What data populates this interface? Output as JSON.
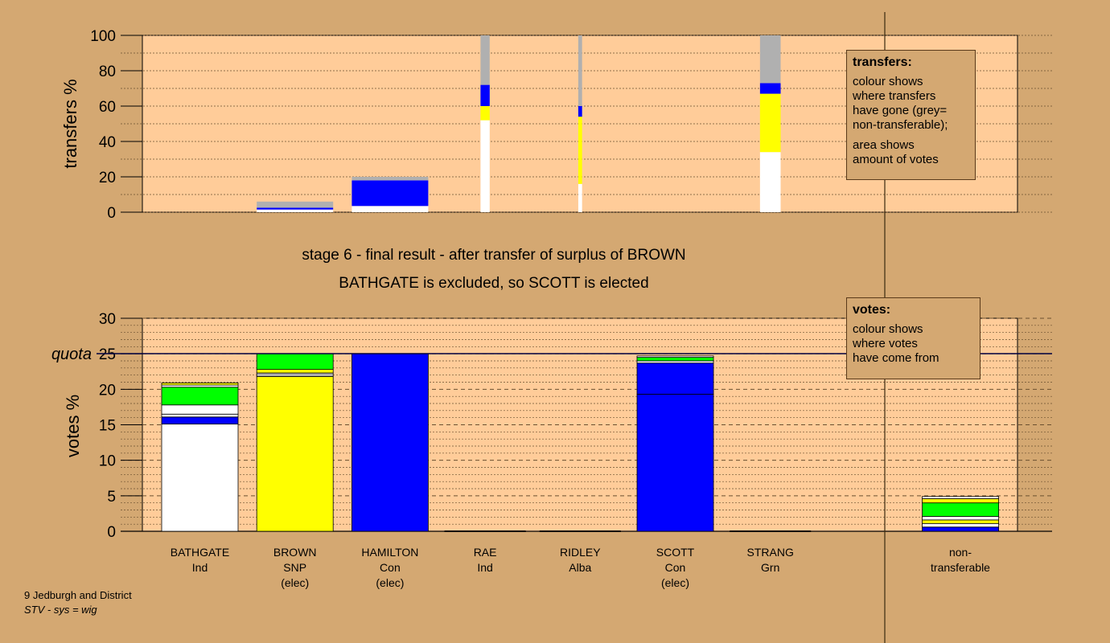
{
  "colors": {
    "background": "#d4a872",
    "plot_bg": "#ffcc99",
    "Ind": "#ffffff",
    "SNP": "#ffff00",
    "Con": "#0000ff",
    "Alba": "#ffffff",
    "Grn": "#00ff00",
    "nontransferable": "#b0b0b0"
  },
  "title": {
    "line1": "stage 6 - final result - after transfer of surplus of BROWN",
    "line2": "BATHGATE is excluded, so SCOTT is elected"
  },
  "footer": {
    "line1": "9 Jedburgh and District",
    "line2": "STV - sys = wig"
  },
  "legend_transfers": {
    "heading": "transfers:",
    "lines": [
      "colour shows",
      "where transfers",
      "have gone (grey=",
      "non-transferable);"
    ],
    "lines2": [
      "area shows",
      "amount of votes"
    ]
  },
  "legend_votes": {
    "heading": "votes:",
    "lines": [
      "colour shows",
      "where votes",
      "have come from"
    ]
  },
  "candidates": [
    {
      "name": "BATHGATE",
      "party": "Ind",
      "status": ""
    },
    {
      "name": "BROWN",
      "party": "SNP",
      "status": "(elec)"
    },
    {
      "name": "HAMILTON",
      "party": "Con",
      "status": "(elec)"
    },
    {
      "name": "RAE",
      "party": "Ind",
      "status": ""
    },
    {
      "name": "RIDLEY",
      "party": "Alba",
      "status": ""
    },
    {
      "name": "SCOTT",
      "party": "Con",
      "status": "(elec)"
    },
    {
      "name": "STRANG",
      "party": "Grn",
      "status": ""
    }
  ],
  "nontransferable": {
    "line1": "non-",
    "line2": "transferable"
  },
  "chart_data": [
    {
      "type": "bar",
      "ylabel": "transfers %",
      "ylim": [
        0,
        100
      ],
      "yticks": [
        0,
        20,
        40,
        60,
        80,
        100
      ],
      "bars": [
        {
          "index": 1,
          "width_share": 1.0,
          "segments": [
            {
              "party": "Ind",
              "from": 0,
              "to": 1.5
            },
            {
              "party": "Con",
              "from": 1.5,
              "to": 2.5
            },
            {
              "party": "nontransferable",
              "from": 2.5,
              "to": 6
            }
          ]
        },
        {
          "index": 2,
          "width_share": 1.0,
          "segments": [
            {
              "party": "Ind",
              "from": 0,
              "to": 3.5
            },
            {
              "party": "Con",
              "from": 3.5,
              "to": 18
            },
            {
              "party": "nontransferable",
              "from": 18,
              "to": 20
            }
          ]
        },
        {
          "index": 3,
          "width_share": 0.12,
          "segments": [
            {
              "party": "Ind",
              "from": 0,
              "to": 52
            },
            {
              "party": "SNP",
              "from": 52,
              "to": 60
            },
            {
              "party": "Con",
              "from": 60,
              "to": 72
            },
            {
              "party": "nontransferable",
              "from": 72,
              "to": 100
            }
          ]
        },
        {
          "index": 4,
          "width_share": 0.05,
          "segments": [
            {
              "party": "Ind",
              "from": 0,
              "to": 16
            },
            {
              "party": "SNP",
              "from": 16,
              "to": 54
            },
            {
              "party": "Con",
              "from": 54,
              "to": 60
            },
            {
              "party": "nontransferable",
              "from": 60,
              "to": 100
            }
          ]
        },
        {
          "index": 6,
          "width_share": 0.27,
          "segments": [
            {
              "party": "Ind",
              "from": 0,
              "to": 34
            },
            {
              "party": "SNP",
              "from": 34,
              "to": 67
            },
            {
              "party": "Con",
              "from": 67,
              "to": 73
            },
            {
              "party": "nontransferable",
              "from": 73,
              "to": 100
            }
          ]
        }
      ]
    },
    {
      "type": "bar",
      "ylabel": "votes %",
      "ylim": [
        0,
        30
      ],
      "yticks": [
        0,
        5,
        10,
        15,
        20,
        25,
        30
      ],
      "quota": 25,
      "quota_label": "quota",
      "bars": [
        {
          "index": 0,
          "segments": [
            {
              "party": "Ind",
              "from": 0,
              "to": 15.1
            },
            {
              "party": "Con",
              "from": 15.1,
              "to": 16.1
            },
            {
              "party": "Ind",
              "from": 16.1,
              "to": 16.5
            },
            {
              "party": "Ind",
              "from": 16.5,
              "to": 17.8
            },
            {
              "party": "Grn",
              "from": 17.8,
              "to": 20.3
            },
            {
              "party": "Ind",
              "from": 20.3,
              "to": 20.6
            },
            {
              "party": "SNP",
              "from": 20.6,
              "to": 20.9
            }
          ]
        },
        {
          "index": 1,
          "segments": [
            {
              "party": "SNP",
              "from": 0,
              "to": 21.8
            },
            {
              "party": "nontransferable",
              "from": 21.8,
              "to": 22.3
            },
            {
              "party": "SNP",
              "from": 22.3,
              "to": 22.8
            },
            {
              "party": "Grn",
              "from": 22.8,
              "to": 25
            }
          ]
        },
        {
          "index": 2,
          "segments": [
            {
              "party": "Con",
              "from": 0,
              "to": 25
            }
          ]
        },
        {
          "index": 3,
          "segments": []
        },
        {
          "index": 4,
          "segments": []
        },
        {
          "index": 5,
          "segments": [
            {
              "party": "Con",
              "from": 0,
              "to": 19.3
            },
            {
              "party": "Con",
              "from": 19.3,
              "to": 23.7
            },
            {
              "party": "Ind",
              "from": 23.7,
              "to": 24.0
            },
            {
              "party": "Grn",
              "from": 24.0,
              "to": 24.5
            },
            {
              "party": "Ind",
              "from": 24.5,
              "to": 24.7
            }
          ]
        },
        {
          "index": 6,
          "segments": []
        },
        {
          "index": 8,
          "segments": [
            {
              "party": "Con",
              "from": 0,
              "to": 0.6
            },
            {
              "party": "Ind",
              "from": 0.6,
              "to": 1.1
            },
            {
              "party": "SNP",
              "from": 1.1,
              "to": 1.6
            },
            {
              "party": "Ind",
              "from": 1.6,
              "to": 2.1
            },
            {
              "party": "Grn",
              "from": 2.1,
              "to": 4.0
            },
            {
              "party": "SNP",
              "from": 4.0,
              "to": 4.6
            },
            {
              "party": "Ind",
              "from": 4.6,
              "to": 4.9
            }
          ]
        }
      ]
    }
  ]
}
